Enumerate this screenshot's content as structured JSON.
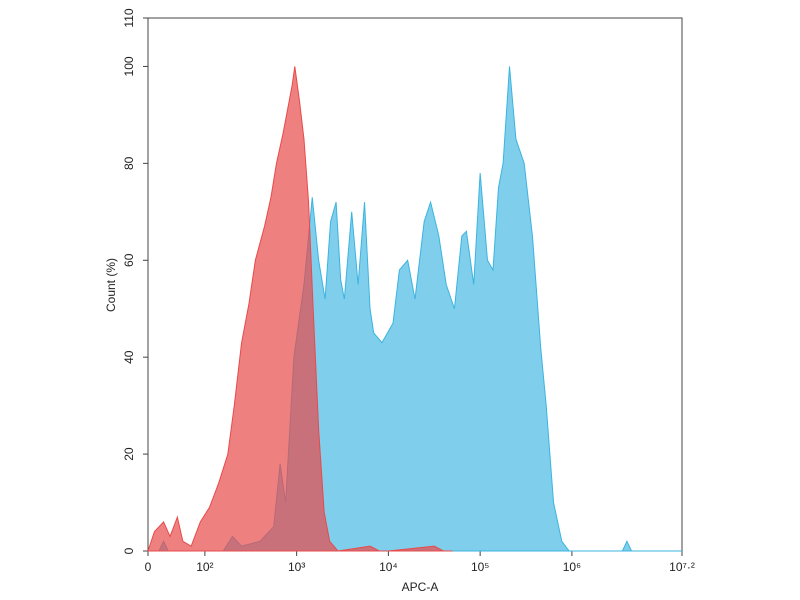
{
  "chart_data": {
    "type": "area",
    "xlabel": "APC-A",
    "ylabel": "Count (%)",
    "xlim": [
      1.38,
      7.2
    ],
    "ylim": [
      0,
      110
    ],
    "xticks": [
      {
        "value": 1.38,
        "label": "0"
      },
      {
        "value": 2,
        "label": "10²"
      },
      {
        "value": 3,
        "label": "10³"
      },
      {
        "value": 4,
        "label": "10⁴"
      },
      {
        "value": 5,
        "label": "10⁵"
      },
      {
        "value": 6,
        "label": "10⁶"
      },
      {
        "value": 7.2,
        "label": "10⁷·²"
      }
    ],
    "yticks": [
      0,
      20,
      40,
      60,
      80,
      100,
      110
    ],
    "series": [
      {
        "color": "#3bb4e0",
        "x": [
          1.38,
          1.5,
          1.55,
          1.6,
          2.2,
          2.3,
          2.4,
          2.6,
          2.75,
          2.82,
          2.88,
          2.97,
          3.08,
          3.17,
          3.24,
          3.31,
          3.37,
          3.43,
          3.48,
          3.52,
          3.6,
          3.67,
          3.74,
          3.8,
          3.84,
          3.93,
          4.05,
          4.12,
          4.21,
          4.29,
          4.39,
          4.46,
          4.55,
          4.63,
          4.72,
          4.8,
          4.85,
          4.93,
          5.0,
          5.08,
          5.14,
          5.2,
          5.25,
          5.32,
          5.39,
          5.48,
          5.57,
          5.66,
          5.72,
          5.8,
          5.89,
          5.97,
          6.55,
          6.6,
          6.65,
          7.2
        ],
        "values": [
          0,
          0,
          2,
          0,
          0,
          3,
          1,
          2,
          5,
          18,
          10,
          40,
          55,
          73,
          60,
          52,
          68,
          72,
          56,
          52,
          70,
          55,
          72,
          50,
          45,
          43,
          47,
          58,
          60,
          52,
          68,
          72,
          65,
          55,
          50,
          65,
          66,
          55,
          78,
          60,
          58,
          75,
          80,
          100,
          85,
          80,
          65,
          42,
          30,
          10,
          2,
          0,
          0,
          2,
          0,
          0
        ]
      },
      {
        "color": "#e84a4a",
        "x": [
          1.38,
          1.45,
          1.55,
          1.62,
          1.7,
          1.76,
          1.85,
          1.95,
          2.05,
          2.15,
          2.25,
          2.32,
          2.4,
          2.48,
          2.55,
          2.65,
          2.72,
          2.78,
          2.85,
          2.9,
          2.95,
          2.98,
          3.03,
          3.08,
          3.13,
          3.18,
          3.24,
          3.3,
          3.36,
          3.45,
          3.8,
          3.9,
          4.0,
          4.5,
          4.6,
          4.7
        ],
        "values": [
          0,
          4,
          6,
          3,
          7,
          2,
          1,
          6,
          9,
          14,
          20,
          30,
          43,
          51,
          60,
          67,
          73,
          80,
          86,
          91,
          96,
          100,
          93,
          85,
          72,
          50,
          25,
          8,
          2,
          0,
          1,
          0,
          0,
          1,
          0,
          0
        ]
      }
    ]
  }
}
